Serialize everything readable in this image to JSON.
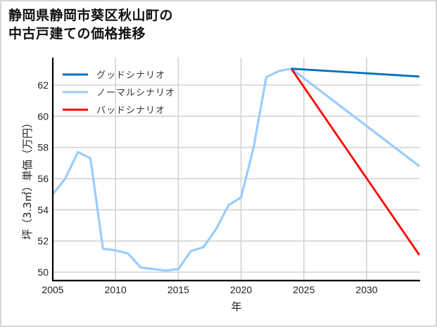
{
  "title": {
    "line1": "静岡県静岡市葵区秋山町の",
    "line2": "中古戸建ての価格推移"
  },
  "chart_data": {
    "type": "line",
    "title": "静岡県静岡市葵区秋山町の中古戸建ての価格推移",
    "xlabel": "年",
    "ylabel": "坪（3.3㎡）単価（万円）",
    "xlim": [
      2005,
      2034.2
    ],
    "ylim": [
      49.6,
      63.8
    ],
    "x_ticks": [
      2005,
      2010,
      2015,
      2020,
      2025,
      2030
    ],
    "y_ticks": [
      50,
      52,
      54,
      56,
      58,
      60,
      62
    ],
    "grid": true,
    "legend_position": "upper left",
    "series": [
      {
        "name": "グッドシナリオ",
        "color": "#0070c0",
        "x": [
          2024,
          2034.2
        ],
        "values": [
          63.05,
          62.55
        ]
      },
      {
        "name": "ノーマルシナリオ",
        "color": "#99ccff",
        "x": [
          2005,
          2006,
          2007,
          2008,
          2009,
          2010,
          2011,
          2012,
          2013,
          2014,
          2015,
          2016,
          2017,
          2018,
          2019,
          2020,
          2021,
          2022,
          2023,
          2024,
          2034.2
        ],
        "values": [
          55.0,
          56.0,
          57.7,
          57.3,
          51.5,
          51.4,
          51.2,
          50.3,
          50.2,
          50.1,
          50.2,
          51.35,
          51.6,
          52.75,
          54.3,
          54.8,
          58.0,
          62.5,
          62.9,
          63.05,
          56.8
        ]
      },
      {
        "name": "バッドシナリオ",
        "color": "#ff0000",
        "x": [
          2024,
          2034.2
        ],
        "values": [
          63.05,
          51.1
        ]
      }
    ]
  }
}
